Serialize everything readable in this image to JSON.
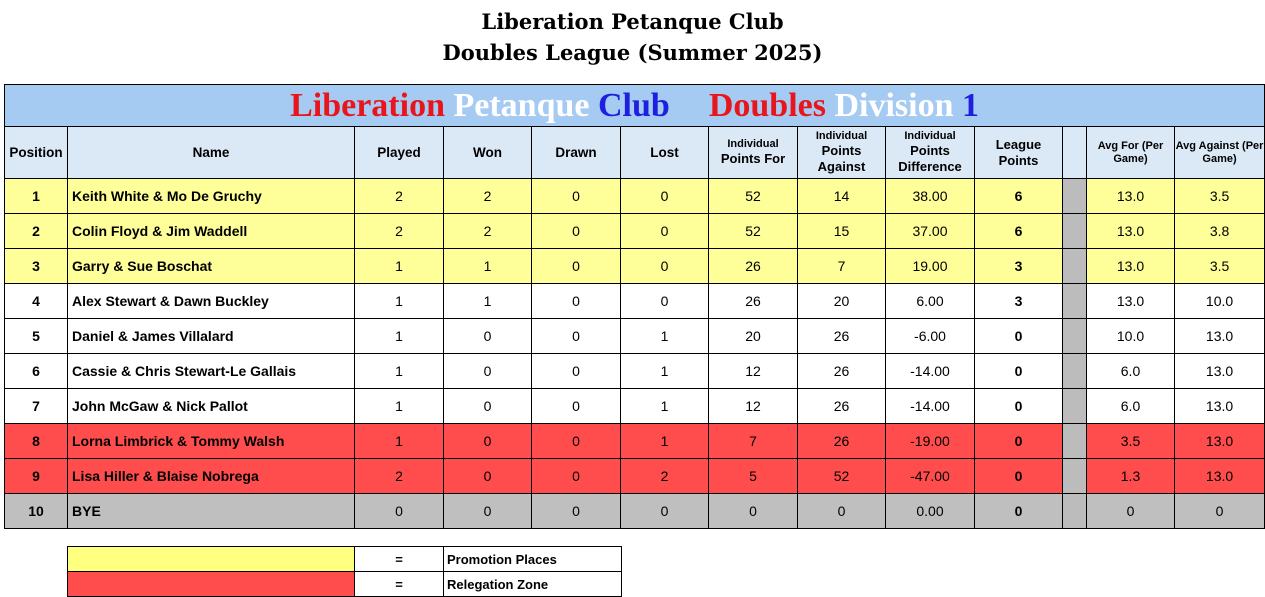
{
  "document": {
    "title_line1": "Liberation Petanque Club",
    "title_line2": "Doubles League (Summer 2025)"
  },
  "banner": {
    "words": [
      {
        "text": "Liberation",
        "color": "#e8161c"
      },
      {
        "text": "Petanque",
        "color": "#ffffff"
      },
      {
        "text": "Club",
        "color": "#1f1fe0"
      },
      {
        "text": "Doubles",
        "color": "#e8161c"
      },
      {
        "text": "Division",
        "color": "#ffffff"
      },
      {
        "text": "1",
        "color": "#1f1fe0"
      }
    ]
  },
  "headers": {
    "position": "Position",
    "name": "Name",
    "played": "Played",
    "won": "Won",
    "drawn": "Drawn",
    "lost": "Lost",
    "points_for_top": "Individual",
    "points_for_bottom": "Points For",
    "points_against_top": "Individual",
    "points_against_bottom": "Points Against",
    "points_diff_top": "Individual",
    "points_diff_bottom": "Points Difference",
    "league_points": "League Points",
    "avg_for": "Avg For (Per Game)",
    "avg_against": "Avg Against (Per Game)"
  },
  "rows": [
    {
      "position": "1",
      "name": "Keith White & Mo De Gruchy",
      "played": "2",
      "won": "2",
      "drawn": "0",
      "lost": "0",
      "points_for": "52",
      "points_against": "14",
      "points_diff": "38.00",
      "league_points": "6",
      "avg_for": "13.0",
      "avg_against": "3.5"
    },
    {
      "position": "2",
      "name": "Colin Floyd & Jim Waddell",
      "played": "2",
      "won": "2",
      "drawn": "0",
      "lost": "0",
      "points_for": "52",
      "points_against": "15",
      "points_diff": "37.00",
      "league_points": "6",
      "avg_for": "13.0",
      "avg_against": "3.8"
    },
    {
      "position": "3",
      "name": "Garry & Sue Boschat",
      "played": "1",
      "won": "1",
      "drawn": "0",
      "lost": "0",
      "points_for": "26",
      "points_against": "7",
      "points_diff": "19.00",
      "league_points": "3",
      "avg_for": "13.0",
      "avg_against": "3.5"
    },
    {
      "position": "4",
      "name": "Alex Stewart & Dawn Buckley",
      "played": "1",
      "won": "1",
      "drawn": "0",
      "lost": "0",
      "points_for": "26",
      "points_against": "20",
      "points_diff": "6.00",
      "league_points": "3",
      "avg_for": "13.0",
      "avg_against": "10.0"
    },
    {
      "position": "5",
      "name": "Daniel & James Villalard",
      "played": "1",
      "won": "0",
      "drawn": "0",
      "lost": "1",
      "points_for": "20",
      "points_against": "26",
      "points_diff": "-6.00",
      "league_points": "0",
      "avg_for": "10.0",
      "avg_against": "13.0"
    },
    {
      "position": "6",
      "name": "Cassie & Chris Stewart-Le Gallais",
      "played": "1",
      "won": "0",
      "drawn": "0",
      "lost": "1",
      "points_for": "12",
      "points_against": "26",
      "points_diff": "-14.00",
      "league_points": "0",
      "avg_for": "6.0",
      "avg_against": "13.0"
    },
    {
      "position": "7",
      "name": "John McGaw & Nick Pallot",
      "played": "1",
      "won": "0",
      "drawn": "0",
      "lost": "1",
      "points_for": "12",
      "points_against": "26",
      "points_diff": "-14.00",
      "league_points": "0",
      "avg_for": "6.0",
      "avg_against": "13.0"
    },
    {
      "position": "8",
      "name": "Lorna Limbrick & Tommy Walsh",
      "played": "1",
      "won": "0",
      "drawn": "0",
      "lost": "1",
      "points_for": "7",
      "points_against": "26",
      "points_diff": "-19.00",
      "league_points": "0",
      "avg_for": "3.5",
      "avg_against": "13.0"
    },
    {
      "position": "9",
      "name": "Lisa Hiller & Blaise Nobrega",
      "played": "2",
      "won": "0",
      "drawn": "0",
      "lost": "2",
      "points_for": "5",
      "points_against": "52",
      "points_diff": "-47.00",
      "league_points": "0",
      "avg_for": "1.3",
      "avg_against": "13.0"
    },
    {
      "position": "10",
      "name": "BYE",
      "played": "0",
      "won": "0",
      "drawn": "0",
      "lost": "0",
      "points_for": "0",
      "points_against": "0",
      "points_diff": "0.00",
      "league_points": "0",
      "avg_for": "0",
      "avg_against": "0"
    }
  ],
  "key": {
    "promotion": {
      "equals": "=",
      "label": "Promotion Places",
      "color": "#ffff80"
    },
    "relegation": {
      "equals": "=",
      "label": "Relegation  Zone",
      "color": "#ff4d4d"
    }
  }
}
